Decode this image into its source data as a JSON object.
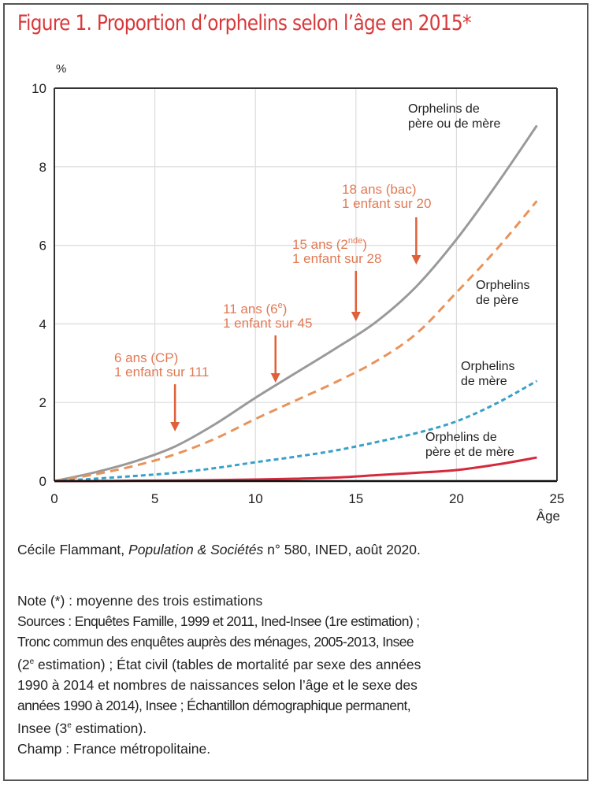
{
  "title": "Figure 1. Proportion d’orphelins selon l’âge en 2015*",
  "chart_data": {
    "type": "line",
    "title": "Figure 1. Proportion d’orphelins selon l’âge en 2015*",
    "xlabel": "Âge",
    "ylabel": "%",
    "xlim": [
      0,
      25
    ],
    "ylim": [
      0,
      10
    ],
    "xticks": [
      0,
      5,
      10,
      15,
      20,
      25
    ],
    "yticks": [
      0,
      2,
      4,
      6,
      8,
      10
    ],
    "grid": true,
    "x": [
      0,
      2,
      4,
      6,
      8,
      10,
      12,
      14,
      16,
      18,
      20,
      22,
      24
    ],
    "series": [
      {
        "name": "Orphelins de père ou de mère",
        "label_lines": [
          "Orphelins de",
          "père ou de mère"
        ],
        "color": "#9a9a9a",
        "style": "solid",
        "values": [
          0,
          0.22,
          0.5,
          0.88,
          1.45,
          2.12,
          2.75,
          3.38,
          4.05,
          4.95,
          6.15,
          7.55,
          9.05
        ]
      },
      {
        "name": "Orphelins de père",
        "label_lines": [
          "Orphelins",
          "de père"
        ],
        "color": "#e8935a",
        "style": "dashed",
        "values": [
          0,
          0.17,
          0.39,
          0.68,
          1.08,
          1.58,
          2.05,
          2.52,
          3.05,
          3.75,
          4.8,
          5.9,
          7.13
        ]
      },
      {
        "name": "Orphelins de mère",
        "label_lines": [
          "Orphelins",
          "de mère"
        ],
        "color": "#3aa0c8",
        "style": "dotted",
        "values": [
          0,
          0.06,
          0.13,
          0.21,
          0.33,
          0.48,
          0.62,
          0.78,
          0.99,
          1.22,
          1.52,
          1.98,
          2.55
        ]
      },
      {
        "name": "Orphelins de père et de mère",
        "label_lines": [
          "Orphelins de",
          "père et de mère"
        ],
        "color": "#d42a3c",
        "style": "solid",
        "values": [
          0,
          0.0,
          0.01,
          0.015,
          0.025,
          0.04,
          0.06,
          0.09,
          0.15,
          0.21,
          0.28,
          0.42,
          0.6
        ]
      }
    ],
    "annotations": [
      {
        "age": 6,
        "line1": "6 ans (CP)",
        "sup": "",
        "line1_after": "",
        "line2": "1 enfant sur 111"
      },
      {
        "age": 11,
        "line1": "11 ans (6",
        "sup": "e",
        "line1_after": ")",
        "line2": "1 enfant sur 45"
      },
      {
        "age": 15,
        "line1": "15 ans (2",
        "sup": "nde",
        "line1_after": ")",
        "line2": "1 enfant sur 28"
      },
      {
        "age": 18,
        "line1": "18 ans (bac)",
        "sup": "",
        "line1_after": "",
        "line2": "1 enfant sur 20"
      }
    ],
    "annotation_color": "#e07a55",
    "arrow_color": "#e0603a"
  },
  "citation": {
    "author": "Cécile Flammant, ",
    "publication": "Population & Sociétés",
    "rest": " n° 580, INED, août 2020."
  },
  "notes": {
    "note": "Note (*) : moyenne des trois estimations",
    "sources_1": "Sources : Enquêtes Famille, 1999 et 2011, Ined-Insee (1re estimation) ;",
    "sources_2": "Tronc commun des enquêtes auprès des ménages, 2005-2013, Insee",
    "sources_3a": "(2",
    "sources_3_sup": "e",
    "sources_3b": " estimation) ; État civil (tables de mortalité par sexe des années",
    "sources_4": "1990 à 2014 et nombres de naissances selon l’âge et le sexe des",
    "sources_5": "années 1990 à 2014), Insee ; Échantillon démographique permanent,",
    "sources_6a": "Insee (3",
    "sources_6_sup": "e",
    "sources_6b": " estimation).",
    "champ": "Champ : France métropolitaine."
  }
}
